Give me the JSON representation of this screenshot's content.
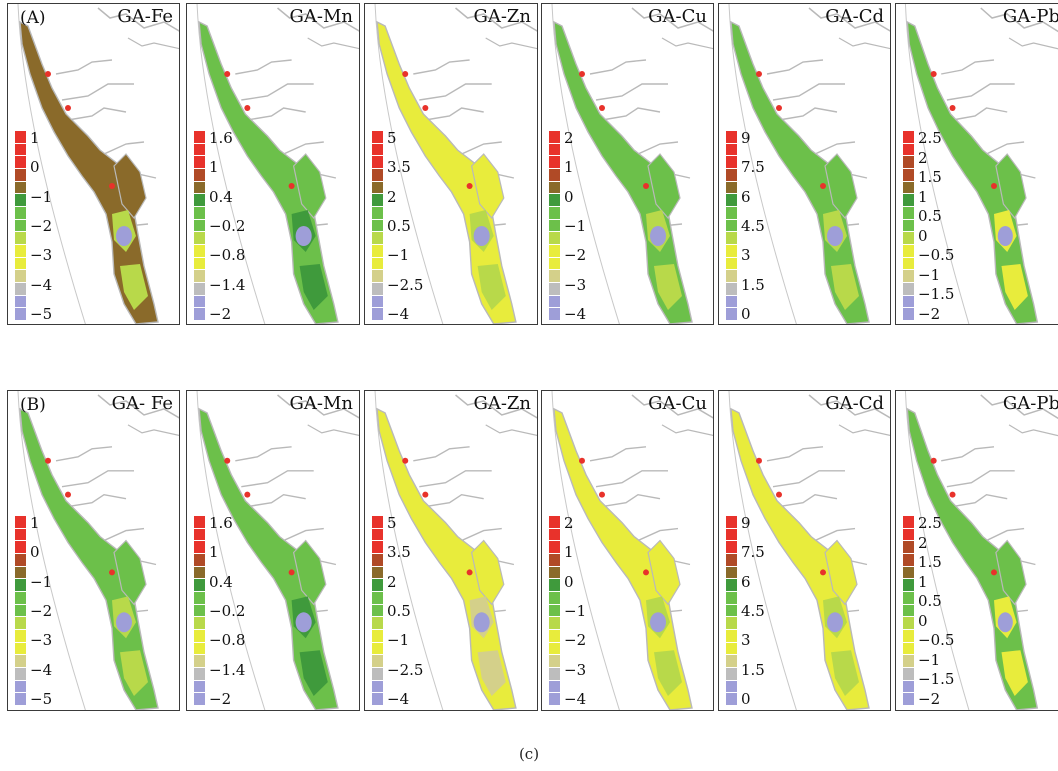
{
  "caption": "(c)",
  "colors": {
    "red": "#e8322b",
    "brown": "#b04a26",
    "olive": "#8a6a2a",
    "green_dark": "#3f9a3c",
    "green": "#6cc04a",
    "yellow_green": "#b8d94a",
    "yellow": "#e8ec3c",
    "khaki": "#d4d08a",
    "gray": "#bdbdbd",
    "lavender": "#9e9ed8",
    "outline": "#b9b9b9"
  },
  "rows": [
    {
      "label": "(A)",
      "panels": [
        {
          "title": "GA-Fe",
          "ticks": [
            "1",
            "0",
            "−1",
            "−2",
            "−3",
            "−4",
            "−5"
          ],
          "fill": "olive",
          "accent": "yellow_green"
        },
        {
          "title": "GA-Mn",
          "ticks": [
            "1.6",
            "1",
            "0.4",
            "−0.2",
            "−0.8",
            "−1.4",
            "−2"
          ],
          "fill": "green",
          "accent": "green_dark"
        },
        {
          "title": "GA-Zn",
          "ticks": [
            "5",
            "3.5",
            "2",
            "0.5",
            "−1",
            "−2.5",
            "−4"
          ],
          "fill": "yellow",
          "accent": "yellow_green"
        },
        {
          "title": "GA-Cu",
          "ticks": [
            "2",
            "1",
            "0",
            "−1",
            "−2",
            "−3",
            "−4"
          ],
          "fill": "green",
          "accent": "yellow_green"
        },
        {
          "title": "GA-Cd",
          "ticks": [
            "9",
            "7.5",
            "6",
            "4.5",
            "3",
            "1.5",
            "0"
          ],
          "fill": "green",
          "accent": "yellow_green"
        },
        {
          "title": "GA-Pb",
          "ticks": [
            "2.5",
            "2",
            "1.5",
            "1",
            "0.5",
            "0",
            "−0.5",
            "−1",
            "−1.5",
            "−2"
          ],
          "fill": "green",
          "accent": "yellow"
        }
      ]
    },
    {
      "label": "(B)",
      "panels": [
        {
          "title": "GA- Fe",
          "ticks": [
            "1",
            "0",
            "−1",
            "−2",
            "−3",
            "−4",
            "−5"
          ],
          "fill": "green",
          "accent": "yellow_green"
        },
        {
          "title": "GA-Mn",
          "ticks": [
            "1.6",
            "1",
            "0.4",
            "−0.2",
            "−0.8",
            "−1.4",
            "−2"
          ],
          "fill": "green",
          "accent": "green_dark"
        },
        {
          "title": "GA-Zn",
          "ticks": [
            "5",
            "3.5",
            "2",
            "0.5",
            "−1",
            "−2.5",
            "−4"
          ],
          "fill": "yellow",
          "accent": "khaki"
        },
        {
          "title": "GA-Cu",
          "ticks": [
            "2",
            "1",
            "0",
            "−1",
            "−2",
            "−3",
            "−4"
          ],
          "fill": "yellow",
          "accent": "yellow_green"
        },
        {
          "title": "GA-Cd",
          "ticks": [
            "9",
            "7.5",
            "6",
            "4.5",
            "3",
            "1.5",
            "0"
          ],
          "fill": "yellow",
          "accent": "yellow_green"
        },
        {
          "title": "GA-Pb",
          "ticks": [
            "2.5",
            "2",
            "1.5",
            "1",
            "0.5",
            "0",
            "−0.5",
            "−1",
            "−1.5",
            "−2"
          ],
          "fill": "green",
          "accent": "yellow"
        }
      ]
    }
  ]
}
